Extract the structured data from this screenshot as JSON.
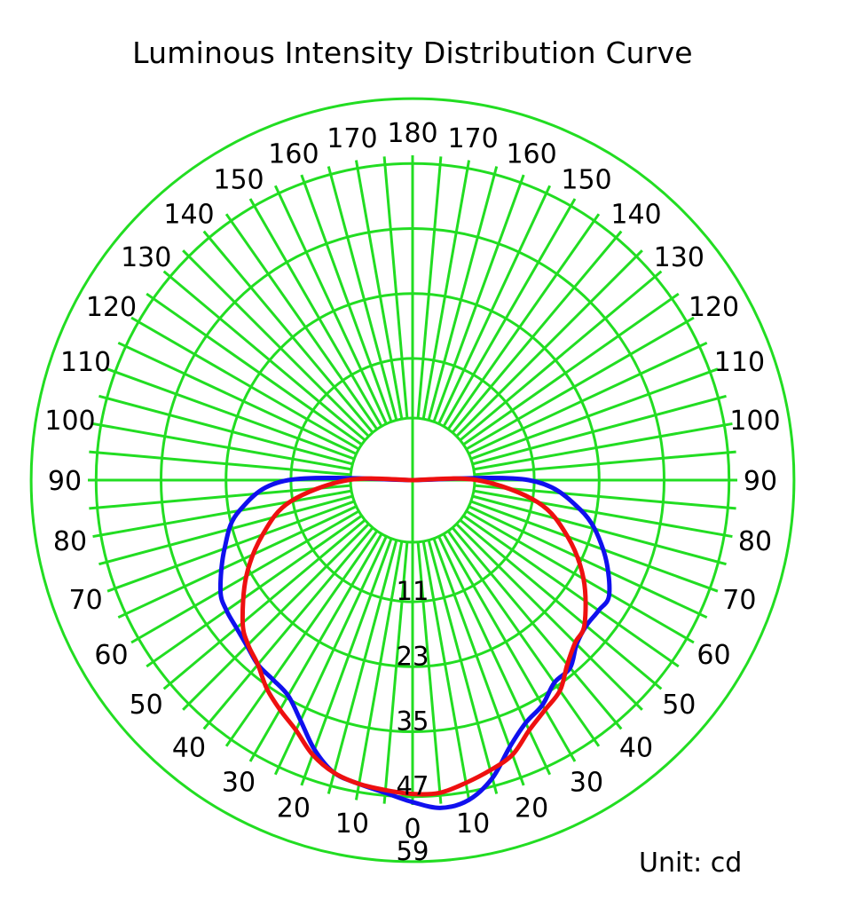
{
  "chart_data": {
    "type": "polar-line",
    "title": "Luminous Intensity Distribution Curve",
    "unit_label": "Unit: cd",
    "grid": true,
    "grid_color": "#22dd22",
    "angle_ticks_right": [
      0,
      10,
      20,
      30,
      40,
      50,
      60,
      70,
      80,
      90,
      100,
      110,
      120,
      130,
      140,
      150,
      160,
      170,
      180
    ],
    "angle_ticks_left": [
      10,
      20,
      30,
      40,
      50,
      60,
      70,
      80,
      90,
      100,
      110,
      120,
      130,
      140,
      150,
      160,
      170
    ],
    "radial_ticks": [
      11,
      23,
      35,
      47,
      59
    ],
    "rlim": [
      0,
      59
    ],
    "series": [
      {
        "color": "#1010ee",
        "angles": [
          -90,
          -80,
          -70,
          -60,
          -55,
          -50,
          -45,
          -40,
          -35,
          -30,
          -25,
          -20,
          -15,
          -10,
          -5,
          0,
          5,
          10,
          15,
          20,
          25,
          30,
          35,
          40,
          45,
          50,
          55,
          60,
          70,
          80,
          90
        ],
        "values": [
          11.5,
          21,
          25.5,
          29.5,
          30.5,
          31,
          31.8,
          33,
          33.5,
          34.5,
          37.5,
          41.5,
          44.5,
          45.5,
          46.5,
          48,
          49.3,
          48.5,
          45.5,
          41,
          38,
          36.5,
          34.2,
          33.8,
          31.4,
          30.4,
          30.5,
          30.5,
          26,
          20,
          10
        ]
      },
      {
        "color": "#ee1010",
        "angles": [
          -90,
          -80,
          -70,
          -60,
          -50,
          -45,
          -40,
          -35,
          -30,
          -25,
          -20,
          -15,
          -10,
          -5,
          0,
          5,
          10,
          15,
          20,
          25,
          30,
          35,
          40,
          45,
          50,
          60,
          70,
          80,
          90
        ],
        "values": [
          0.5,
          11.5,
          18,
          24,
          29.5,
          31.5,
          33,
          35.5,
          37.5,
          39.5,
          42.5,
          44.5,
          45.5,
          46,
          46.5,
          46.5,
          45.3,
          44,
          42.5,
          39.5,
          37.5,
          36,
          33,
          31,
          30,
          25,
          19,
          12,
          0.5
        ]
      }
    ]
  }
}
